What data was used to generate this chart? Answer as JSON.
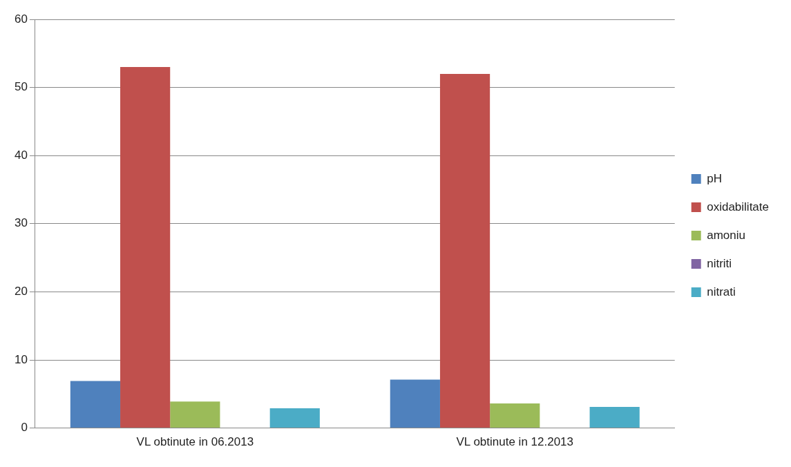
{
  "chart_data": {
    "type": "bar",
    "categories": [
      "VL obtinute in 06.2013",
      "VL obtinute in 12.2013"
    ],
    "series": [
      {
        "name": "pH",
        "color": "#4f81bd",
        "values": [
          6.9,
          7.1
        ]
      },
      {
        "name": "oxidabilitate",
        "color": "#c0504d",
        "values": [
          53,
          52
        ]
      },
      {
        "name": "amoniu",
        "color": "#9bbb59",
        "values": [
          3.9,
          3.6
        ]
      },
      {
        "name": "nitriti",
        "color": "#8064a2",
        "values": [
          0,
          0
        ]
      },
      {
        "name": "nitrati",
        "color": "#4bacc6",
        "values": [
          2.9,
          3.1
        ]
      }
    ],
    "ylim": [
      0,
      60
    ],
    "yticks": [
      0,
      10,
      20,
      30,
      40,
      50,
      60
    ],
    "grid": "y",
    "legend": "right"
  }
}
